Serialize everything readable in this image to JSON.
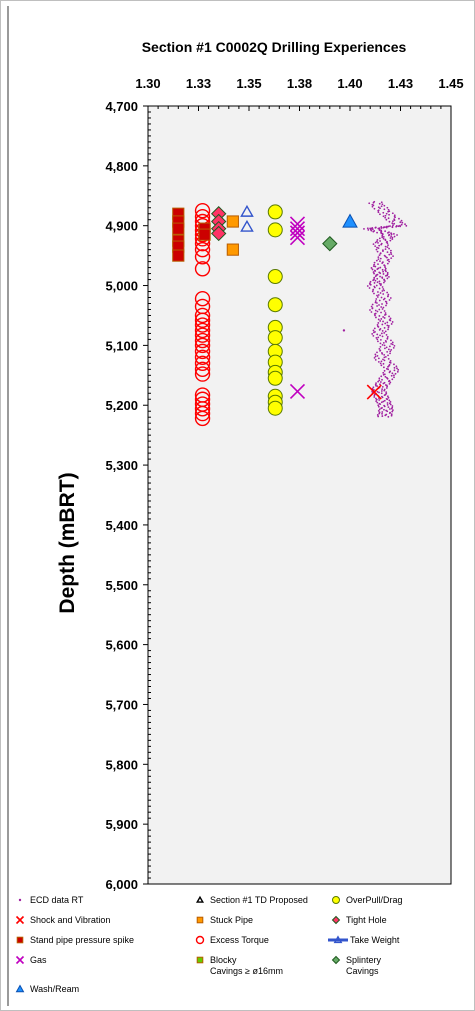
{
  "chart_data": {
    "type": "scatter",
    "title": "Section #1 C0002Q  Drilling Experiences",
    "xlabel": "",
    "ylabel": "Depth (mBRT)",
    "xlim": [
      1.3,
      1.45
    ],
    "ylim": [
      4700,
      6000
    ],
    "y_inverted": true,
    "x_ticks": [
      "1.30",
      "1.33",
      "1.35",
      "1.38",
      "1.40",
      "1.43",
      "1.45"
    ],
    "y_ticks": [
      "4,700",
      "4,800",
      "4,900",
      "5,000",
      "5,100",
      "5,200",
      "5,300",
      "5,400",
      "5,500",
      "5,600",
      "5,700",
      "5,800",
      "5,900",
      "6,000"
    ],
    "x_axis_position": "top",
    "grid": false,
    "plot_background": "#f2f2f2",
    "legend_position": "bottom",
    "series": [
      {
        "name": "ECD data RT",
        "marker": "dot",
        "color": "#a020a0",
        "points": [
          [
            1.412,
            4860
          ],
          [
            1.418,
            4880
          ],
          [
            1.425,
            4900
          ],
          [
            1.41,
            4905
          ],
          [
            1.42,
            4915
          ],
          [
            1.415,
            4930
          ],
          [
            1.418,
            4950
          ],
          [
            1.414,
            4970
          ],
          [
            1.416,
            4985
          ],
          [
            1.412,
            5000
          ],
          [
            1.417,
            5020
          ],
          [
            1.413,
            5040
          ],
          [
            1.418,
            5060
          ],
          [
            1.414,
            5080
          ],
          [
            1.419,
            5100
          ],
          [
            1.415,
            5120
          ],
          [
            1.421,
            5140
          ],
          [
            1.417,
            5160
          ],
          [
            1.414,
            5175
          ],
          [
            1.416,
            5190
          ],
          [
            1.418,
            5205
          ],
          [
            1.417,
            5220
          ],
          [
            1.397,
            5075
          ]
        ]
      },
      {
        "name": "Section #1 TD Proposed",
        "marker": "triangle-open",
        "color": "#000000",
        "points": []
      },
      {
        "name": "OverPull/Drag",
        "marker": "circle",
        "color": "#ffff00",
        "points": [
          [
            1.363,
            4877
          ],
          [
            1.363,
            4907
          ],
          [
            1.363,
            4985
          ],
          [
            1.363,
            5032
          ],
          [
            1.363,
            5070
          ],
          [
            1.363,
            5087
          ],
          [
            1.363,
            5110
          ],
          [
            1.363,
            5128
          ],
          [
            1.363,
            5145
          ],
          [
            1.363,
            5155
          ],
          [
            1.363,
            5185
          ],
          [
            1.363,
            5195
          ],
          [
            1.363,
            5205
          ]
        ]
      },
      {
        "name": "Shock and Vibration",
        "marker": "x",
        "color": "#ff0000",
        "points": [
          [
            1.412,
            5178
          ]
        ]
      },
      {
        "name": "Stuck Pipe",
        "marker": "square",
        "color": "#ff9900",
        "points": [
          [
            1.342,
            4893
          ],
          [
            1.342,
            4940
          ]
        ]
      },
      {
        "name": "Tight Hole",
        "marker": "diamond",
        "color": "#ff3366",
        "points": [
          [
            1.335,
            4880
          ],
          [
            1.335,
            4893
          ],
          [
            1.335,
            4905
          ],
          [
            1.335,
            4913
          ]
        ]
      },
      {
        "name": "Stand pipe pressure spike",
        "marker": "square",
        "color": "#cc0000",
        "points": [
          [
            1.315,
            4880
          ],
          [
            1.315,
            4893
          ],
          [
            1.315,
            4905
          ],
          [
            1.315,
            4925
          ],
          [
            1.315,
            4935
          ],
          [
            1.315,
            4950
          ],
          [
            1.328,
            4905
          ],
          [
            1.328,
            4915
          ]
        ]
      },
      {
        "name": "Excess Torque",
        "marker": "circle-open",
        "color": "#ff0000",
        "points": [
          [
            1.327,
            4875
          ],
          [
            1.327,
            4885
          ],
          [
            1.327,
            4893
          ],
          [
            1.327,
            4900
          ],
          [
            1.327,
            4908
          ],
          [
            1.327,
            4915
          ],
          [
            1.327,
            4922
          ],
          [
            1.327,
            4930
          ],
          [
            1.327,
            4940
          ],
          [
            1.327,
            4952
          ],
          [
            1.327,
            4972
          ],
          [
            1.327,
            5022
          ],
          [
            1.327,
            5035
          ],
          [
            1.327,
            5050
          ],
          [
            1.327,
            5058
          ],
          [
            1.327,
            5066
          ],
          [
            1.327,
            5075
          ],
          [
            1.327,
            5083
          ],
          [
            1.327,
            5092
          ],
          [
            1.327,
            5100
          ],
          [
            1.327,
            5110
          ],
          [
            1.327,
            5120
          ],
          [
            1.327,
            5130
          ],
          [
            1.327,
            5140
          ],
          [
            1.327,
            5148
          ],
          [
            1.327,
            5183
          ],
          [
            1.327,
            5190
          ],
          [
            1.327,
            5198
          ],
          [
            1.327,
            5206
          ],
          [
            1.327,
            5214
          ],
          [
            1.327,
            5222
          ]
        ]
      },
      {
        "name": "Take Weight",
        "marker": "triangle-open",
        "color": "#3355cc",
        "points": [
          [
            1.349,
            4877
          ],
          [
            1.349,
            4902
          ]
        ]
      },
      {
        "name": "Gas",
        "marker": "x",
        "color": "#c000c0",
        "points": [
          [
            1.374,
            4897
          ],
          [
            1.374,
            4905
          ],
          [
            1.374,
            4912
          ],
          [
            1.374,
            4920
          ],
          [
            1.374,
            5177
          ]
        ]
      },
      {
        "name": "Blocky Cavings ≥ ø16mm",
        "marker": "square",
        "color": "#66cc00",
        "points": []
      },
      {
        "name": "Splintery Cavings",
        "marker": "diamond",
        "color": "#66aa66",
        "points": [
          [
            1.39,
            4930
          ]
        ]
      },
      {
        "name": "Wash/Ream",
        "marker": "triangle",
        "color": "#1e90ff",
        "points": [
          [
            1.4,
            4893
          ]
        ]
      }
    ]
  },
  "legend": [
    {
      "label": "ECD data RT",
      "marker": "dot",
      "color": "#a020a0"
    },
    {
      "label": "Section #1 TD Proposed",
      "marker": "triangle-open",
      "color": "#000000"
    },
    {
      "label": "OverPull/Drag",
      "marker": "circle",
      "color": "#ffff00"
    },
    {
      "label": "Shock and Vibration",
      "marker": "x",
      "color": "#ff0000"
    },
    {
      "label": "Stuck Pipe",
      "marker": "square",
      "color": "#ff9900"
    },
    {
      "label": "Tight Hole",
      "marker": "diamond",
      "color": "#ff3366"
    },
    {
      "label": "Stand pipe pressure spike",
      "marker": "square",
      "color": "#cc0000"
    },
    {
      "label": "Excess Torque",
      "marker": "circle-open",
      "color": "#ff0000"
    },
    {
      "label": "Take Weight",
      "marker": "line-triangle",
      "color": "#3355cc"
    },
    {
      "label": "Gas",
      "marker": "x",
      "color": "#c000c0"
    },
    {
      "label": "Blocky\nCavings ≥ ø16mm",
      "marker": "square",
      "color": "#66cc00"
    },
    {
      "label": "Splintery\nCavings",
      "marker": "diamond",
      "color": "#66aa66"
    },
    {
      "label": "Wash/Ream",
      "marker": "triangle",
      "color": "#1e90ff"
    }
  ]
}
